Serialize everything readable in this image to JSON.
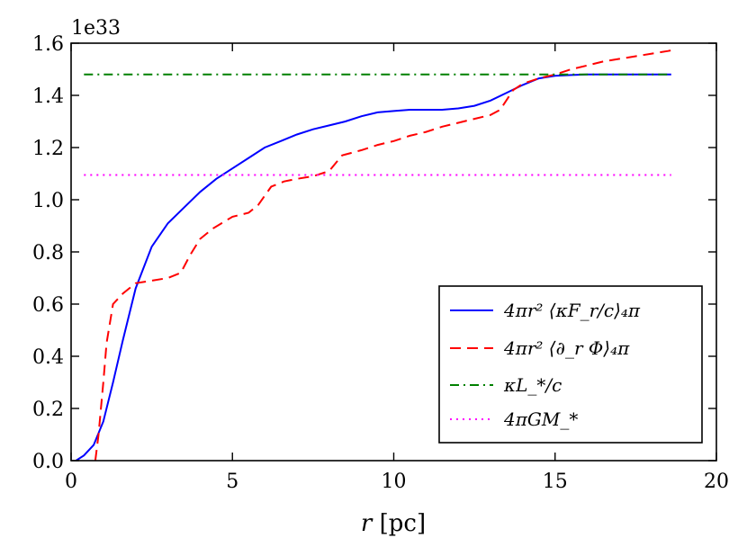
{
  "chart_data": {
    "type": "line",
    "title": "",
    "xlabel": "r [pc]",
    "ylabel": "",
    "y_offset_label": "1e33",
    "xlim": [
      0,
      20
    ],
    "ylim": [
      0.0,
      1.6
    ],
    "x_ticks": [
      0,
      5,
      10,
      15,
      20
    ],
    "x_tick_labels": [
      "0",
      "5",
      "10",
      "15",
      "20"
    ],
    "y_ticks": [
      0.0,
      0.2,
      0.4,
      0.6,
      0.8,
      1.0,
      1.2,
      1.4,
      1.6
    ],
    "y_tick_labels": [
      "0.0",
      "0.2",
      "0.4",
      "0.6",
      "0.8",
      "1.0",
      "1.2",
      "1.4",
      "1.6"
    ],
    "grid": false,
    "legend_position": "lower-right",
    "series": [
      {
        "name": "4πr² ⟨κF_r/c⟩₄π",
        "color": "#0000ff",
        "style": "solid",
        "x": [
          0.15,
          0.4,
          0.7,
          1.0,
          1.3,
          1.6,
          2.0,
          2.5,
          3.0,
          3.5,
          4.0,
          4.5,
          5.0,
          5.5,
          6.0,
          6.5,
          7.0,
          7.5,
          8.0,
          8.5,
          9.0,
          9.5,
          10.0,
          10.5,
          11.0,
          11.5,
          12.0,
          12.5,
          13.0,
          13.5,
          14.0,
          14.5,
          15.0,
          15.5,
          16.0,
          17.0,
          18.0,
          18.6
        ],
        "y": [
          0.0,
          0.02,
          0.06,
          0.15,
          0.3,
          0.46,
          0.66,
          0.82,
          0.91,
          0.97,
          1.03,
          1.08,
          1.12,
          1.16,
          1.2,
          1.225,
          1.25,
          1.27,
          1.285,
          1.3,
          1.32,
          1.335,
          1.34,
          1.345,
          1.345,
          1.345,
          1.35,
          1.36,
          1.38,
          1.41,
          1.44,
          1.465,
          1.475,
          1.478,
          1.48,
          1.48,
          1.48,
          1.48
        ]
      },
      {
        "name": "4πr² ⟨∂_r Φ⟩₄π",
        "color": "#ff0000",
        "style": "dashed",
        "x": [
          0.75,
          0.85,
          1.0,
          1.1,
          1.3,
          1.6,
          2.0,
          2.5,
          3.0,
          3.4,
          3.7,
          4.0,
          4.4,
          5.0,
          5.5,
          5.8,
          6.2,
          6.6,
          7.0,
          7.5,
          8.0,
          8.4,
          9.0,
          9.5,
          10.0,
          10.5,
          11.0,
          11.5,
          12.0,
          12.5,
          13.0,
          13.3,
          13.7,
          14.0,
          14.5,
          15.0,
          15.5,
          16.0,
          16.5,
          17.0,
          17.5,
          18.0,
          18.5,
          18.7
        ],
        "y": [
          0.0,
          0.1,
          0.3,
          0.45,
          0.6,
          0.64,
          0.68,
          0.69,
          0.7,
          0.72,
          0.79,
          0.85,
          0.89,
          0.935,
          0.95,
          0.98,
          1.05,
          1.07,
          1.08,
          1.09,
          1.11,
          1.17,
          1.19,
          1.21,
          1.225,
          1.245,
          1.26,
          1.28,
          1.295,
          1.31,
          1.325,
          1.345,
          1.42,
          1.445,
          1.465,
          1.48,
          1.5,
          1.515,
          1.53,
          1.54,
          1.55,
          1.56,
          1.57,
          1.575
        ]
      },
      {
        "name": "κL_*/c",
        "color": "#008000",
        "style": "dashdot",
        "x": [
          0.4,
          18.6
        ],
        "y": [
          1.48,
          1.48
        ]
      },
      {
        "name": "4πGM_*",
        "color": "#ff00ff",
        "style": "dotted",
        "x": [
          0.4,
          18.6
        ],
        "y": [
          1.095,
          1.095
        ]
      }
    ]
  }
}
